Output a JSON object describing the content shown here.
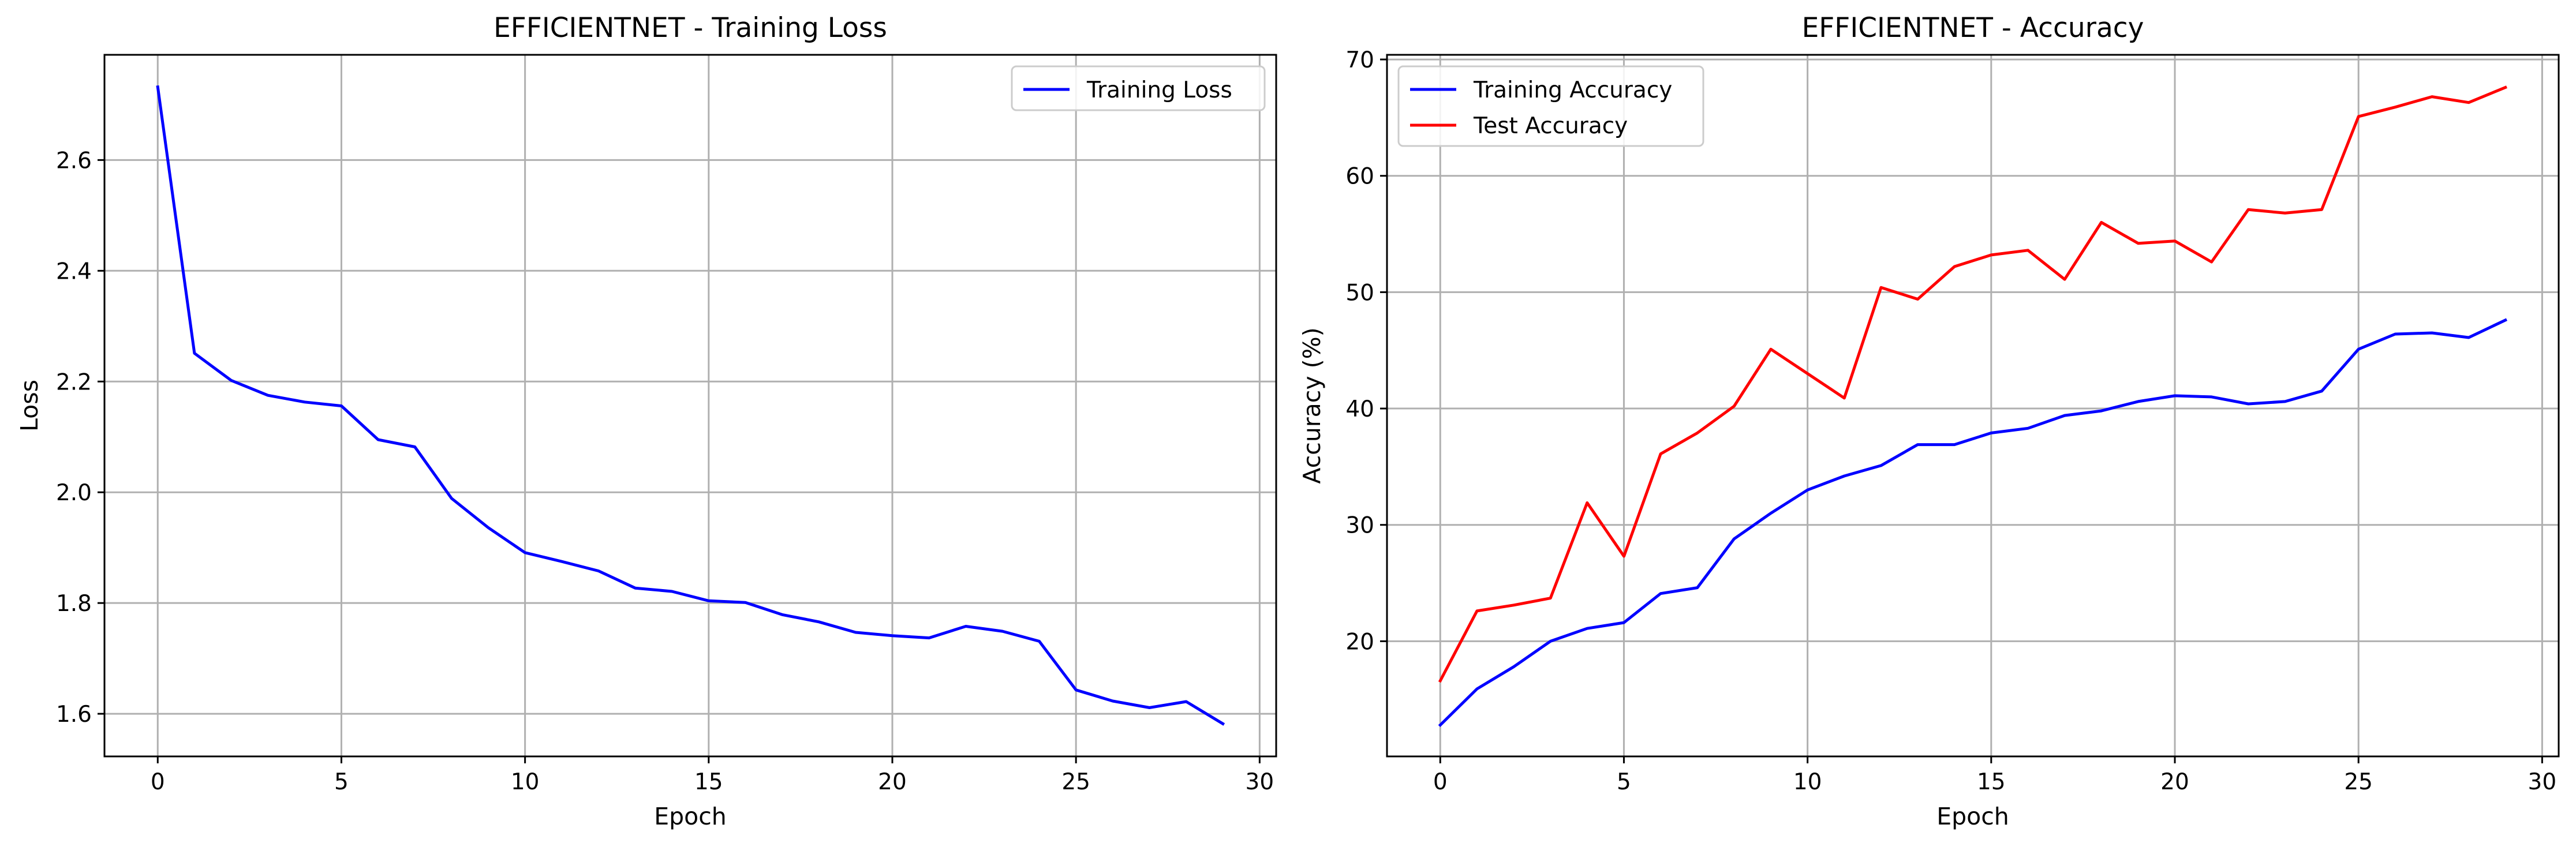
{
  "chart_data": [
    {
      "type": "line",
      "title": "EFFICIENTNET - Training Loss",
      "xlabel": "Epoch",
      "ylabel": "Loss",
      "xlim": [
        -1.45,
        30.45
      ],
      "ylim": [
        1.523,
        2.79
      ],
      "xticks": [
        0,
        5,
        10,
        15,
        20,
        25,
        30
      ],
      "yticks": [
        1.6,
        1.8,
        2.0,
        2.2,
        2.4,
        2.6
      ],
      "ytick_decimals": 1,
      "grid": true,
      "legend_position": "top-right",
      "x": [
        0,
        1,
        2,
        3,
        4,
        5,
        6,
        7,
        8,
        9,
        10,
        11,
        12,
        13,
        14,
        15,
        16,
        17,
        18,
        19,
        20,
        21,
        22,
        23,
        24,
        25,
        26,
        27,
        28,
        29
      ],
      "series": [
        {
          "name": "Training Loss",
          "color": "#0000ff",
          "values": [
            2.732,
            2.251,
            2.202,
            2.175,
            2.163,
            2.156,
            2.095,
            2.082,
            1.989,
            1.936,
            1.891,
            1.875,
            1.858,
            1.827,
            1.821,
            1.804,
            1.801,
            1.779,
            1.766,
            1.747,
            1.741,
            1.737,
            1.758,
            1.749,
            1.731,
            1.643,
            1.623,
            1.611,
            1.622,
            1.582
          ]
        }
      ]
    },
    {
      "type": "line",
      "title": "EFFICIENTNET - Accuracy",
      "xlabel": "Epoch",
      "ylabel": "Accuracy (%)",
      "xlim": [
        -1.45,
        30.45
      ],
      "ylim": [
        10.1,
        70.4
      ],
      "xticks": [
        0,
        5,
        10,
        15,
        20,
        25,
        30
      ],
      "yticks": [
        20,
        30,
        40,
        50,
        60,
        70
      ],
      "ytick_decimals": 0,
      "grid": true,
      "legend_position": "top-left",
      "x": [
        0,
        1,
        2,
        3,
        4,
        5,
        6,
        7,
        8,
        9,
        10,
        11,
        12,
        13,
        14,
        15,
        16,
        17,
        18,
        19,
        20,
        21,
        22,
        23,
        24,
        25,
        26,
        27,
        28,
        29
      ],
      "series": [
        {
          "name": "Training Accuracy",
          "color": "#0000ff",
          "values": [
            12.8,
            15.9,
            17.8,
            20.0,
            21.1,
            21.6,
            24.1,
            24.6,
            28.8,
            31.0,
            33.0,
            34.2,
            35.1,
            36.9,
            36.9,
            37.9,
            38.3,
            39.4,
            39.8,
            40.6,
            41.1,
            41.0,
            40.4,
            40.6,
            41.5,
            45.1,
            46.4,
            46.5,
            46.1,
            47.6
          ]
        },
        {
          "name": "Test Accuracy",
          "color": "#ff0000",
          "values": [
            16.6,
            22.6,
            23.1,
            23.7,
            31.9,
            27.3,
            36.1,
            37.9,
            40.2,
            45.1,
            43.0,
            40.9,
            50.4,
            49.4,
            52.2,
            53.2,
            53.6,
            51.1,
            56.0,
            54.2,
            54.4,
            52.6,
            57.1,
            56.8,
            57.1,
            65.1,
            65.9,
            66.8,
            66.3,
            67.6
          ]
        }
      ]
    }
  ]
}
